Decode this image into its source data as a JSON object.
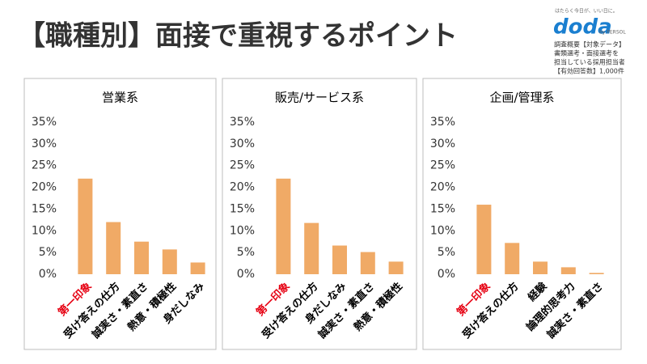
{
  "title": "【職種別】面接で重視するポイント",
  "brand": {
    "tagline": "はたらく今日が、いい日に。",
    "logo": "doda",
    "by": "by PERSOL"
  },
  "notes": [
    "調査概要【対象データ】",
    "書類選考・面接選考を",
    "担当している採用担当者",
    "【有効回答数】1,000件"
  ],
  "chart_data": [
    {
      "type": "bar",
      "title": "営業系",
      "categories": [
        "第一印象",
        "受け答えの仕方",
        "誠実さ・素直さ",
        "熱意・積極性",
        "身だしなみ"
      ],
      "category_label_colors": [
        "#e60012",
        "#000000",
        "#000000",
        "#000000",
        "#000000"
      ],
      "values": [
        22,
        12,
        7.5,
        5.7,
        2.7
      ],
      "color": "#f0aa66",
      "ylim": [
        0,
        35
      ],
      "yticks": [
        {
          "value": 0,
          "label": "0%"
        },
        {
          "value": 5,
          "label": "5%"
        },
        {
          "value": 10,
          "label": "10%"
        },
        {
          "value": 15,
          "label": "15%"
        },
        {
          "value": 20,
          "label": "20%"
        },
        {
          "value": 25,
          "label": "25%"
        },
        {
          "value": 30,
          "label": "30%"
        },
        {
          "value": 35,
          "label": "35%"
        }
      ],
      "grid": false
    },
    {
      "type": "bar",
      "title": "販売/サービス系",
      "categories": [
        "第一印象",
        "受け答えの仕方",
        "身だしなみ",
        "誠実さ・素直さ",
        "熱意・積極性"
      ],
      "category_label_colors": [
        "#e60012",
        "#000000",
        "#000000",
        "#000000",
        "#000000"
      ],
      "values": [
        22,
        11.8,
        6.6,
        5.1,
        2.9
      ],
      "color": "#f0aa66",
      "ylim": [
        0,
        35
      ],
      "yticks": [
        {
          "value": 0,
          "label": "0%"
        },
        {
          "value": 5,
          "label": "5%"
        },
        {
          "value": 10,
          "label": "10%"
        },
        {
          "value": 15,
          "label": "15%"
        },
        {
          "value": 20,
          "label": "20%"
        },
        {
          "value": 25,
          "label": "25%"
        },
        {
          "value": 30,
          "label": "30%"
        },
        {
          "value": 35,
          "label": "35%"
        }
      ],
      "grid": false
    },
    {
      "type": "bar",
      "title": "企画/管理系",
      "categories": [
        "第一印象",
        "受け答えの仕方",
        "経験",
        "論理的思考力",
        "誠実さ・素直さ"
      ],
      "category_label_colors": [
        "#e60012",
        "#000000",
        "#000000",
        "#000000",
        "#000000"
      ],
      "values": [
        16,
        7.2,
        2.9,
        1.6,
        0.3
      ],
      "color": "#f0aa66",
      "ylim": [
        0,
        35
      ],
      "yticks": [
        {
          "value": 0,
          "label": "0%"
        },
        {
          "value": 5,
          "label": "5%"
        },
        {
          "value": 10,
          "label": "10%"
        },
        {
          "value": 15,
          "label": "15%"
        },
        {
          "value": 20,
          "label": "20%"
        },
        {
          "value": 25,
          "label": "25%"
        },
        {
          "value": 30,
          "label": "30%"
        },
        {
          "value": 35,
          "label": "35%"
        }
      ],
      "grid": false
    }
  ]
}
